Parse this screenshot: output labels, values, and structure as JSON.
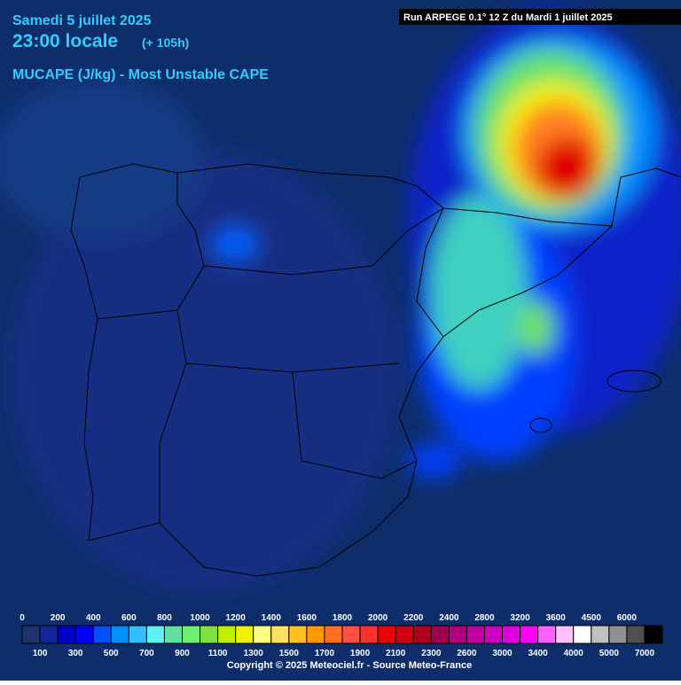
{
  "header": {
    "date": "Samedi 5 juillet 2025",
    "time": "23:00 locale",
    "lead": "(+ 105h)",
    "field": "MUCAPE (J/kg) - Most Unstable CAPE",
    "run": "Run ARPEGE 0.1° 12 Z du Mardi 1 juillet 2025"
  },
  "legend": {
    "top_labels": [
      0,
      200,
      400,
      600,
      800,
      1000,
      1200,
      1400,
      1600,
      1800,
      2000,
      2200,
      2400,
      2800,
      3200,
      3600,
      4500,
      6000
    ],
    "bottom_labels": [
      100,
      300,
      500,
      700,
      900,
      1100,
      1300,
      1500,
      1700,
      1900,
      2100,
      2300,
      2600,
      3000,
      3400,
      4000,
      5000,
      7000
    ],
    "colors": [
      "#1e3470",
      "#14259c",
      "#0000c8",
      "#0000ff",
      "#0050ff",
      "#0090ff",
      "#30c0ff",
      "#60f0f0",
      "#60e0a0",
      "#70f070",
      "#80e040",
      "#c0f000",
      "#f0f000",
      "#ffff80",
      "#ffe060",
      "#ffc020",
      "#ff9900",
      "#ff7020",
      "#ff5040",
      "#ff3030",
      "#f00000",
      "#d00010",
      "#b00020",
      "#a00050",
      "#b00080",
      "#c000a0",
      "#d000c0",
      "#e000e0",
      "#ff00ff",
      "#ff60ff",
      "#ffc0ff",
      "#ffffff",
      "#c0c0c0",
      "#909090",
      "#505050",
      "#000000"
    ]
  },
  "footer": {
    "copyright": "Copyright © 2025 Meteociel.fr - Source Meteo-France"
  }
}
